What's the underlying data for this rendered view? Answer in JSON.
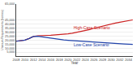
{
  "chart_data": {
    "type": "line",
    "xlabel": "Year",
    "ylabel": "Uranium Requirements (tonnes)",
    "x": [
      2008,
      2009,
      2010,
      2011,
      2012,
      2013,
      2014,
      2015,
      2016,
      2017,
      2018,
      2019,
      2020,
      2021,
      2022,
      2023,
      2024,
      2025,
      2026,
      2027,
      2028,
      2029,
      2030,
      2031,
      2032,
      2033,
      2034,
      2035
    ],
    "series": [
      {
        "name": "High-Case Scenario",
        "color": "#cc2222",
        "values": [
          18500,
          19000,
          20000,
          22000,
          24500,
          25200,
          25800,
          25900,
          26000,
          26300,
          26700,
          27200,
          27800,
          28500,
          29500,
          30500,
          31800,
          33200,
          34800,
          36200,
          37500,
          38800,
          40000,
          41200,
          42300,
          43300,
          44300,
          45200
        ]
      },
      {
        "name": "Low-Case Scenario",
        "color": "#2244aa",
        "values": [
          18500,
          19000,
          20000,
          22000,
          24500,
          24800,
          24000,
          23000,
          22000,
          21200,
          20600,
          20100,
          19700,
          19300,
          19000,
          18600,
          18200,
          17800,
          17400,
          17000,
          16600,
          16300,
          16000,
          15700,
          15400,
          15100,
          14800,
          14500
        ]
      }
    ],
    "annotations": [
      {
        "text": "High-Case Scenario",
        "x": 2021,
        "y": 30800,
        "color": "#cc2222",
        "anchor": "bottom"
      },
      {
        "text": "Low-Case Scenario",
        "x": 2021,
        "y": 19800,
        "color": "#2244aa",
        "anchor": "top"
      }
    ],
    "xlim": [
      2008,
      2035
    ],
    "xticks": [
      2008,
      2010,
      2012,
      2014,
      2016,
      2018,
      2020,
      2022,
      2024,
      2026,
      2028,
      2030,
      2032,
      2034
    ],
    "ylim": [
      0,
      65000
    ],
    "yticks": [
      {
        "value": 5000,
        "label": "5,000"
      },
      {
        "value": 10000,
        "label": "10,000"
      },
      {
        "value": 15000,
        "label": "15,000"
      },
      {
        "value": 20000,
        "label": "20,000"
      },
      {
        "value": 25000,
        "label": "25,000"
      },
      {
        "value": 30000,
        "label": "30,000"
      },
      {
        "value": 35000,
        "label": "35,000"
      },
      {
        "value": 40000,
        "label": "40,000"
      },
      {
        "value": 45000,
        "label": "45,000"
      },
      {
        "value": 65000,
        "label": "65,000"
      }
    ],
    "grid": "y"
  }
}
